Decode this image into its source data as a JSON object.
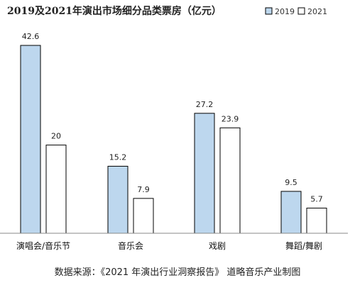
{
  "chart_data": {
    "type": "bar",
    "title": "2019及2021年演出市场细分品类票房（亿元）",
    "categories": [
      "演唱会/音乐节",
      "音乐会",
      "戏剧",
      "舞蹈/舞剧"
    ],
    "series": [
      {
        "name": "2019",
        "values": [
          42.6,
          15.2,
          27.2,
          9.5
        ],
        "color": "#bdd7ee"
      },
      {
        "name": "2021",
        "values": [
          20,
          7.9,
          23.9,
          5.7
        ],
        "color": "#ffffff"
      }
    ],
    "value_labels": [
      [
        "42.6",
        "15.2",
        "27.2",
        "9.5"
      ],
      [
        "20",
        "7.9",
        "23.9",
        "5.7"
      ]
    ],
    "ylim": [
      0,
      45
    ],
    "grid": false,
    "legend_position": "top-right",
    "bar_stroke": "#000000",
    "source": "数据来源：《2021 年演出行业洞察报告》 道略音乐产业制图"
  }
}
